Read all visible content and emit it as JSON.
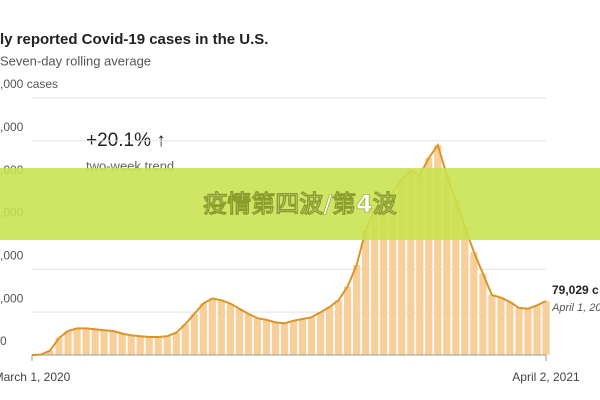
{
  "chart_data": {
    "type": "line",
    "title": "ly reported Covid-19 cases in the U.S.",
    "subtitle": "Seven-day rolling average",
    "trend_value": "+20.1% ↑",
    "trend_label": "two-week trend",
    "end_value_label": "79,029 c",
    "end_date_label": "April 1, 202",
    "banner": "疫情第四波/第4波",
    "categories": [
      "March 1, 2020",
      null,
      null,
      null,
      null,
      null,
      null,
      null,
      null,
      null,
      null,
      null,
      null,
      null,
      null,
      null,
      null,
      null,
      null,
      null,
      null,
      null,
      null,
      null,
      null,
      null,
      null,
      null,
      null,
      null,
      null,
      null,
      null,
      null,
      null,
      null,
      null,
      null,
      null,
      null,
      null,
      null,
      null,
      null,
      null,
      null,
      null,
      null,
      null,
      null,
      null,
      null,
      null,
      null,
      null,
      null,
      null,
      "April 2, 2021"
    ],
    "values": [
      0,
      500,
      5000,
      20000,
      28000,
      31000,
      31000,
      30000,
      29000,
      28000,
      25000,
      23000,
      22000,
      21000,
      21000,
      22000,
      26000,
      36000,
      48000,
      60000,
      66000,
      64000,
      60000,
      54000,
      48000,
      43000,
      41000,
      38000,
      37000,
      40000,
      42000,
      44000,
      50000,
      56000,
      64000,
      80000,
      105000,
      145000,
      170000,
      165000,
      190000,
      205000,
      215000,
      210000,
      230000,
      245000,
      210000,
      180000,
      150000,
      120000,
      95000,
      70000,
      67000,
      62000,
      55000,
      54000,
      58000,
      63000
    ],
    "color": "#d9952a",
    "bar_color": "#f8cf98",
    "ylim": [
      0,
      300000
    ],
    "yticks": [
      {
        "value": 0,
        "label": "0"
      },
      {
        "value": 50000,
        "label": ",000"
      },
      {
        "value": 100000,
        "label": ",000"
      },
      {
        "value": 150000,
        "label": ",000"
      },
      {
        "value": 200000,
        "label": ",000"
      },
      {
        "value": 250000,
        "label": ",000"
      },
      {
        "value": 300000,
        "label": ",000 cases"
      }
    ],
    "grid": true
  }
}
